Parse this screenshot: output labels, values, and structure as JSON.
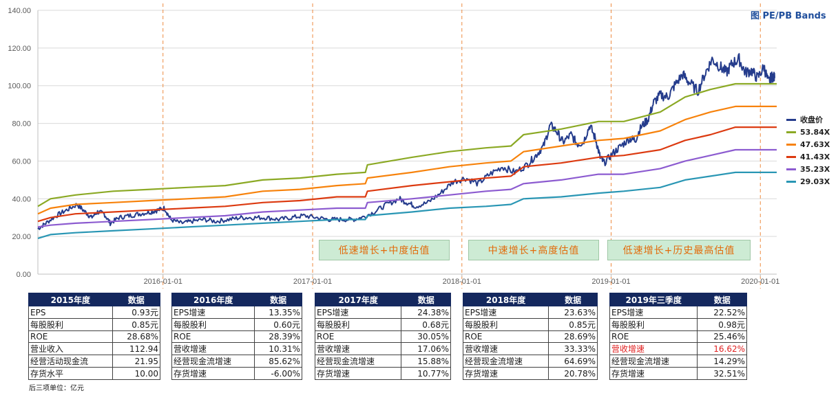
{
  "chart_data": {
    "type": "line",
    "title": "图 PE/PB Bands",
    "xlabel": "",
    "ylabel": "",
    "ylim": [
      0,
      140
    ],
    "y_ticks": [
      "0.00",
      "20.00",
      "40.00",
      "60.00",
      "80.00",
      "100.00",
      "120.00",
      "140.00"
    ],
    "x_ticks": [
      "2016-01-01",
      "2017-01-01",
      "2018-01-01",
      "2019-01-01",
      "2020-01-01"
    ],
    "x_range": [
      "2015-03-01",
      "2020-02-10"
    ],
    "legend_position": "right",
    "series": [
      {
        "name": "收盘价",
        "color": "#253c8c",
        "points": [
          [
            "2015-03-01",
            24
          ],
          [
            "2015-03-20",
            27
          ],
          [
            "2015-04-15",
            31
          ],
          [
            "2015-05-10",
            34
          ],
          [
            "2015-06-05",
            37
          ],
          [
            "2015-06-25",
            33
          ],
          [
            "2015-07-10",
            30
          ],
          [
            "2015-07-25",
            33
          ],
          [
            "2015-08-10",
            32
          ],
          [
            "2015-08-25",
            27
          ],
          [
            "2015-09-15",
            30
          ],
          [
            "2015-10-10",
            31
          ],
          [
            "2015-11-05",
            32
          ],
          [
            "2015-12-01",
            33
          ],
          [
            "2015-12-20",
            34
          ],
          [
            "2016-01-05",
            35
          ],
          [
            "2016-01-20",
            29
          ],
          [
            "2016-02-15",
            27
          ],
          [
            "2016-03-10",
            28
          ],
          [
            "2016-04-10",
            29
          ],
          [
            "2016-05-10",
            28
          ],
          [
            "2016-06-10",
            29
          ],
          [
            "2016-07-10",
            30
          ],
          [
            "2016-08-10",
            30
          ],
          [
            "2016-09-10",
            30
          ],
          [
            "2016-10-10",
            29
          ],
          [
            "2016-11-10",
            30
          ],
          [
            "2016-12-10",
            31
          ],
          [
            "2017-01-10",
            30
          ],
          [
            "2017-02-10",
            29
          ],
          [
            "2017-03-10",
            29
          ],
          [
            "2017-04-10",
            29
          ],
          [
            "2017-05-01",
            30
          ],
          [
            "2017-06-01",
            33
          ],
          [
            "2017-07-01",
            37
          ],
          [
            "2017-08-01",
            40
          ],
          [
            "2017-08-20",
            38
          ],
          [
            "2017-09-10",
            36
          ],
          [
            "2017-10-10",
            38
          ],
          [
            "2017-11-10",
            43
          ],
          [
            "2017-12-10",
            49
          ],
          [
            "2018-01-10",
            51
          ],
          [
            "2018-02-10",
            48
          ],
          [
            "2018-03-10",
            53
          ],
          [
            "2018-04-10",
            57
          ],
          [
            "2018-05-10",
            54
          ],
          [
            "2018-06-10",
            58
          ],
          [
            "2018-07-01",
            63
          ],
          [
            "2018-07-20",
            68
          ],
          [
            "2018-08-05",
            79
          ],
          [
            "2018-08-20",
            76
          ],
          [
            "2018-09-05",
            70
          ],
          [
            "2018-09-25",
            74
          ],
          [
            "2018-10-10",
            69
          ],
          [
            "2018-10-25",
            70
          ],
          [
            "2018-11-10",
            79
          ],
          [
            "2018-11-25",
            71
          ],
          [
            "2018-12-05",
            62
          ],
          [
            "2018-12-15",
            59
          ],
          [
            "2019-01-05",
            64
          ],
          [
            "2019-01-25",
            68
          ],
          [
            "2019-02-15",
            72
          ],
          [
            "2019-03-01",
            71
          ],
          [
            "2019-03-15",
            78
          ],
          [
            "2019-04-01",
            82
          ],
          [
            "2019-04-15",
            91
          ],
          [
            "2019-05-01",
            95
          ],
          [
            "2019-05-20",
            94
          ],
          [
            "2019-06-05",
            100
          ],
          [
            "2019-06-25",
            106
          ],
          [
            "2019-07-10",
            102
          ],
          [
            "2019-08-01",
            97
          ],
          [
            "2019-08-20",
            107
          ],
          [
            "2019-09-05",
            114
          ],
          [
            "2019-09-25",
            110
          ],
          [
            "2019-10-10",
            107
          ],
          [
            "2019-10-25",
            112
          ],
          [
            "2019-11-10",
            114
          ],
          [
            "2019-11-25",
            107
          ],
          [
            "2019-12-10",
            108
          ],
          [
            "2019-12-25",
            104
          ],
          [
            "2020-01-10",
            110
          ],
          [
            "2020-01-20",
            102
          ],
          [
            "2020-01-30",
            105
          ],
          [
            "2020-02-05",
            104
          ]
        ]
      },
      {
        "name": "53.84X",
        "color": "#8ba924",
        "points": [
          [
            "2015-03-01",
            36
          ],
          [
            "2015-04-01",
            40
          ],
          [
            "2015-06-01",
            42
          ],
          [
            "2015-09-01",
            44
          ],
          [
            "2015-12-01",
            45
          ],
          [
            "2016-03-01",
            46
          ],
          [
            "2016-06-01",
            47
          ],
          [
            "2016-09-01",
            50
          ],
          [
            "2016-12-01",
            51
          ],
          [
            "2017-03-01",
            53
          ],
          [
            "2017-05-10",
            54
          ],
          [
            "2017-05-15",
            58
          ],
          [
            "2017-09-01",
            62
          ],
          [
            "2017-12-01",
            65
          ],
          [
            "2018-03-01",
            67
          ],
          [
            "2018-05-01",
            68
          ],
          [
            "2018-06-01",
            74
          ],
          [
            "2018-09-01",
            77
          ],
          [
            "2018-12-01",
            81
          ],
          [
            "2019-02-01",
            81
          ],
          [
            "2019-05-01",
            86
          ],
          [
            "2019-07-01",
            94
          ],
          [
            "2019-09-01",
            98
          ],
          [
            "2019-11-01",
            101
          ],
          [
            "2020-02-10",
            101
          ]
        ]
      },
      {
        "name": "47.63X",
        "color": "#f7820b",
        "points": [
          [
            "2015-03-01",
            32
          ],
          [
            "2015-04-01",
            35
          ],
          [
            "2015-06-01",
            37
          ],
          [
            "2015-09-01",
            38
          ],
          [
            "2015-12-01",
            39
          ],
          [
            "2016-03-01",
            40
          ],
          [
            "2016-06-01",
            41
          ],
          [
            "2016-09-01",
            44
          ],
          [
            "2016-12-01",
            45
          ],
          [
            "2017-03-01",
            47
          ],
          [
            "2017-05-10",
            48
          ],
          [
            "2017-05-15",
            51
          ],
          [
            "2017-09-01",
            54
          ],
          [
            "2017-12-01",
            57
          ],
          [
            "2018-03-01",
            59
          ],
          [
            "2018-05-01",
            60
          ],
          [
            "2018-06-01",
            65
          ],
          [
            "2018-09-01",
            68
          ],
          [
            "2018-12-01",
            71
          ],
          [
            "2019-02-01",
            72
          ],
          [
            "2019-05-01",
            76
          ],
          [
            "2019-07-01",
            82
          ],
          [
            "2019-09-01",
            86
          ],
          [
            "2019-11-01",
            89
          ],
          [
            "2020-02-10",
            89
          ]
        ]
      },
      {
        "name": "41.43X",
        "color": "#dc3a10",
        "points": [
          [
            "2015-03-01",
            28
          ],
          [
            "2015-04-01",
            30
          ],
          [
            "2015-06-01",
            32
          ],
          [
            "2015-09-01",
            33
          ],
          [
            "2015-12-01",
            34
          ],
          [
            "2016-03-01",
            35
          ],
          [
            "2016-06-01",
            36
          ],
          [
            "2016-09-01",
            38
          ],
          [
            "2016-12-01",
            39
          ],
          [
            "2017-03-01",
            41
          ],
          [
            "2017-05-10",
            41
          ],
          [
            "2017-05-15",
            44
          ],
          [
            "2017-09-01",
            47
          ],
          [
            "2017-12-01",
            49
          ],
          [
            "2018-03-01",
            51
          ],
          [
            "2018-05-01",
            52
          ],
          [
            "2018-06-01",
            57
          ],
          [
            "2018-09-01",
            59
          ],
          [
            "2018-12-01",
            62
          ],
          [
            "2019-02-01",
            63
          ],
          [
            "2019-05-01",
            66
          ],
          [
            "2019-07-01",
            71
          ],
          [
            "2019-09-01",
            74
          ],
          [
            "2019-11-01",
            78
          ],
          [
            "2020-02-10",
            78
          ]
        ]
      },
      {
        "name": "35.23X",
        "color": "#8c5bd0",
        "points": [
          [
            "2015-03-01",
            25
          ],
          [
            "2015-04-01",
            26
          ],
          [
            "2015-06-01",
            27
          ],
          [
            "2015-09-01",
            28
          ],
          [
            "2015-12-01",
            29
          ],
          [
            "2016-03-01",
            30
          ],
          [
            "2016-06-01",
            31
          ],
          [
            "2016-09-01",
            33
          ],
          [
            "2016-12-01",
            34
          ],
          [
            "2017-03-01",
            35
          ],
          [
            "2017-05-10",
            35
          ],
          [
            "2017-05-15",
            38
          ],
          [
            "2017-09-01",
            40
          ],
          [
            "2017-12-01",
            42
          ],
          [
            "2018-03-01",
            44
          ],
          [
            "2018-05-01",
            45
          ],
          [
            "2018-06-01",
            48
          ],
          [
            "2018-09-01",
            50
          ],
          [
            "2018-12-01",
            53
          ],
          [
            "2019-02-01",
            53
          ],
          [
            "2019-05-01",
            56
          ],
          [
            "2019-07-01",
            60
          ],
          [
            "2019-09-01",
            63
          ],
          [
            "2019-11-01",
            66
          ],
          [
            "2020-02-10",
            66
          ]
        ]
      },
      {
        "name": "29.03X",
        "color": "#2996b4",
        "points": [
          [
            "2015-03-01",
            19
          ],
          [
            "2015-04-01",
            21
          ],
          [
            "2015-06-01",
            22
          ],
          [
            "2015-09-01",
            23
          ],
          [
            "2015-12-01",
            24
          ],
          [
            "2016-03-01",
            25
          ],
          [
            "2016-06-01",
            26
          ],
          [
            "2016-09-01",
            27
          ],
          [
            "2016-12-01",
            28
          ],
          [
            "2017-03-01",
            29
          ],
          [
            "2017-05-10",
            29
          ],
          [
            "2017-05-15",
            31
          ],
          [
            "2017-09-01",
            33
          ],
          [
            "2017-12-01",
            35
          ],
          [
            "2018-03-01",
            36
          ],
          [
            "2018-05-01",
            37
          ],
          [
            "2018-06-01",
            40
          ],
          [
            "2018-09-01",
            41
          ],
          [
            "2018-12-01",
            43
          ],
          [
            "2019-02-01",
            44
          ],
          [
            "2019-05-01",
            46
          ],
          [
            "2019-07-01",
            50
          ],
          [
            "2019-09-01",
            52
          ],
          [
            "2019-11-01",
            54
          ],
          [
            "2020-02-10",
            54
          ]
        ]
      }
    ],
    "vertical_markers": [
      "2016-01-01",
      "2017-01-01",
      "2018-01-01",
      "2019-01-01",
      "2020-01-01"
    ],
    "annotations": [
      "低速增长+中度估值",
      "中速增长+高度估值",
      "低速增长+历史最高估值"
    ]
  },
  "tables": [
    {
      "header": [
        "2015年度",
        "数据"
      ],
      "rows": [
        [
          "EPS",
          "0.93元"
        ],
        [
          "每股股利",
          "0.85元"
        ],
        [
          "ROE",
          "28.68%"
        ],
        [
          "营业收入",
          "112.94"
        ],
        [
          "经营活动现金流",
          "21.95"
        ],
        [
          "存货水平",
          "10.00"
        ]
      ]
    },
    {
      "header": [
        "2016年度",
        "数据"
      ],
      "rows": [
        [
          "EPS增速",
          "13.35%"
        ],
        [
          "每股股利",
          "0.60元"
        ],
        [
          "ROE",
          "28.39%"
        ],
        [
          "营收增速",
          "10.31%"
        ],
        [
          "经营现金流增速",
          "85.62%"
        ],
        [
          "存货增速",
          "-6.00%"
        ]
      ]
    },
    {
      "header": [
        "2017年度",
        "数据"
      ],
      "rows": [
        [
          "EPS增速",
          "24.38%"
        ],
        [
          "每股股利",
          "0.68元"
        ],
        [
          "ROE",
          "30.05%"
        ],
        [
          "营收增速",
          "17.06%"
        ],
        [
          "经营现金流增速",
          "15.88%"
        ],
        [
          "存货增速",
          "10.77%"
        ]
      ]
    },
    {
      "header": [
        "2018年度",
        "数据"
      ],
      "rows": [
        [
          "EPS增速",
          "23.63%"
        ],
        [
          "每股股利",
          "0.85元"
        ],
        [
          "ROE",
          "28.69%"
        ],
        [
          "营收增速",
          "33.33%"
        ],
        [
          "经营现金流增速",
          "64.69%"
        ],
        [
          "存货增速",
          "20.78%"
        ]
      ]
    },
    {
      "header": [
        "2019年三季度",
        "数据"
      ],
      "rows": [
        [
          "EPS增速",
          "22.52%"
        ],
        [
          "每股股利",
          "0.98元"
        ],
        [
          "ROE",
          "25.46%"
        ],
        [
          "营收增速",
          "16.62%"
        ],
        [
          "经营现金流增速",
          "14.29%"
        ],
        [
          "存货增速",
          "32.51%"
        ]
      ],
      "highlight_row": 3,
      "highlight_color": "#e02020"
    }
  ],
  "note": "后三项单位：亿元"
}
